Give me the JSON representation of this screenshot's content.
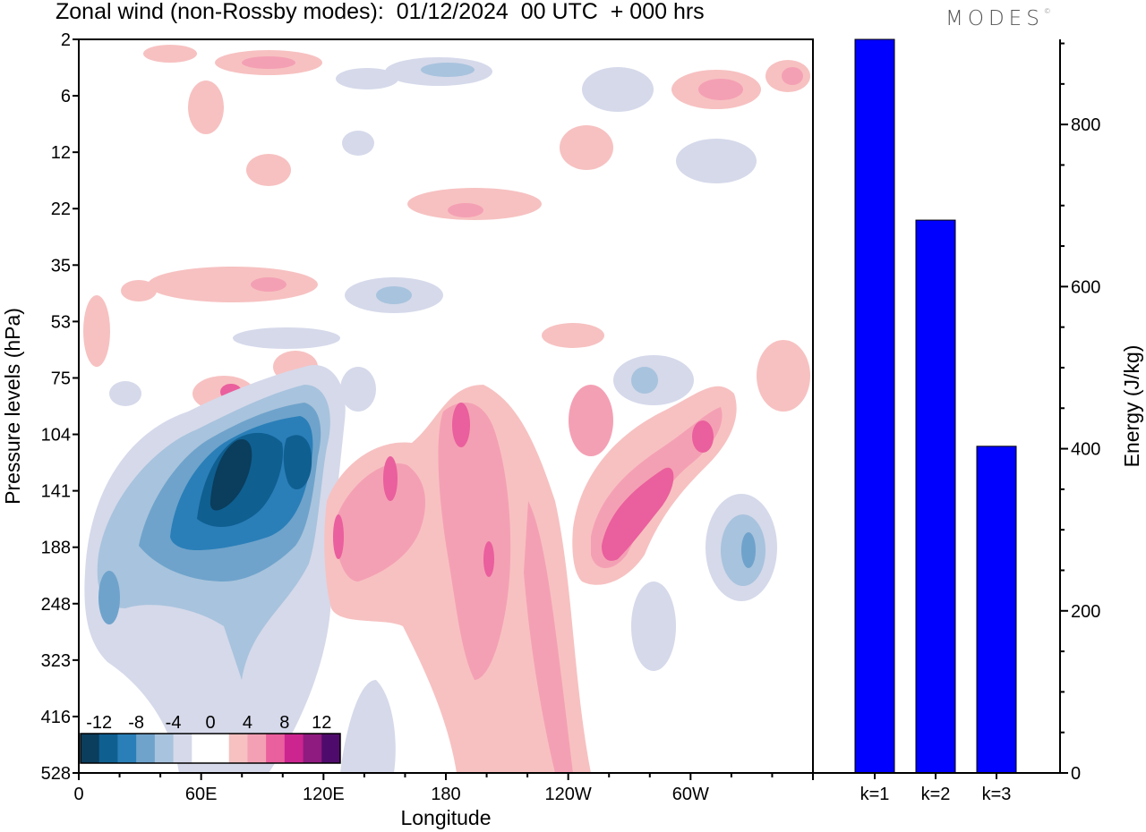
{
  "title": "Zonal wind (non-Rossby modes):  01/12/2024  00 UTC  + 000 hrs",
  "logo": "MODES",
  "logo_mark": "©",
  "chart_data": [
    {
      "type": "heatmap",
      "title": "Zonal wind (non-Rossby modes):  01/12/2024  00 UTC  + 000 hrs",
      "xlabel": "Longitude",
      "ylabel": "Pressure levels (hPa)",
      "x_ticks": [
        "0",
        "60E",
        "120E",
        "180",
        "120W",
        "60W"
      ],
      "y_ticks": [
        "2",
        "6",
        "12",
        "22",
        "35",
        "53",
        "75",
        "104",
        "141",
        "188",
        "248",
        "323",
        "416",
        "528"
      ],
      "colorbar": {
        "labels": [
          "-12",
          "-8",
          "-4",
          "0",
          "4",
          "8",
          "12"
        ],
        "colors": [
          "#0b3d5c",
          "#0f5f91",
          "#2a7fb8",
          "#6fa3cb",
          "#a8c3dd",
          "#d5d9ea",
          "#ffffff",
          "#ffffff",
          "#f7c1c1",
          "#f4a0b4",
          "#ea5f9d",
          "#cc2590",
          "#8f1a80",
          "#4f0b6b"
        ]
      },
      "features": [
        {
          "name": "negative-jet-core",
          "lon": 72,
          "level": "141",
          "value": -14
        },
        {
          "name": "negative-lobe-east",
          "lon": 108,
          "level": "141",
          "value": -11
        },
        {
          "name": "negative-lobe-west",
          "lon": 48,
          "level": "188",
          "value": -9
        },
        {
          "name": "positive-column-dateline",
          "lon": 190,
          "level": "188",
          "value": 6
        },
        {
          "name": "positive-band-pacific",
          "lon": 245,
          "level": "141",
          "value": 8
        },
        {
          "name": "positive-band-pacific-upper",
          "lon": 285,
          "level": "104",
          "value": 8
        },
        {
          "name": "negative-patch-atlantic",
          "lon": 325,
          "level": "188",
          "value": -7
        },
        {
          "name": "positive-patch-75",
          "lon": 75,
          "level": "75",
          "value": 6
        }
      ]
    },
    {
      "type": "bar",
      "categories": [
        "k=1",
        "k=2",
        "k=3"
      ],
      "values": [
        905,
        682,
        403
      ],
      "ylabel": "Energy (J/kg)",
      "ylim": [
        0,
        905
      ],
      "y_ticks": [
        0,
        200,
        400,
        600,
        800
      ],
      "bar_color": "#0000ff"
    }
  ]
}
